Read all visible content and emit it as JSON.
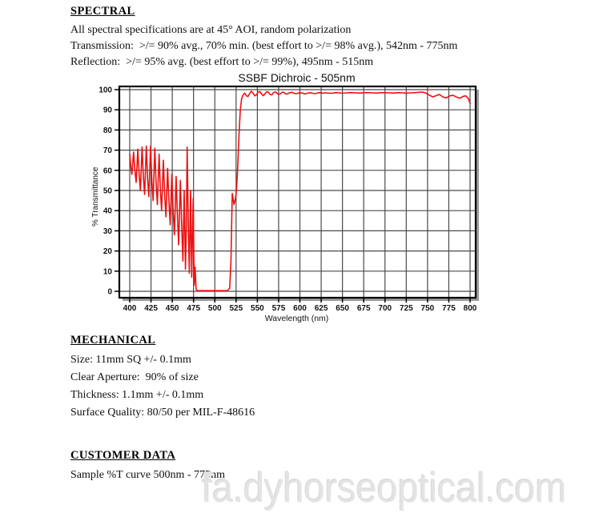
{
  "spectral": {
    "heading": "SPECTRAL",
    "lines": [
      "All spectral specifications are at 45° AOI, random polarization",
      "Transmission:  >/= 90% avg., 70% min. (best effort to >/= 98% avg.), 542nm - 775nm",
      "Reflection:  >/= 95% avg. (best effort to >/= 99%), 495nm - 515nm"
    ]
  },
  "chart_data": {
    "type": "line",
    "title": "SSBF Dichroic - 505nm",
    "xlabel": "Wavelength (nm)",
    "ylabel": "% Transmittance",
    "xlim": [
      400,
      800
    ],
    "ylim": [
      0,
      100
    ],
    "grid": true,
    "x_ticks": [
      400,
      425,
      450,
      475,
      500,
      525,
      550,
      575,
      600,
      625,
      650,
      675,
      700,
      725,
      750,
      775,
      800
    ],
    "y_ticks": [
      0,
      10,
      20,
      30,
      40,
      50,
      60,
      70,
      80,
      90,
      100
    ],
    "line_color": "#ee1010",
    "grid_color": "#4a4a4a",
    "frame_color": "#000000",
    "shadow_color": "#9b9b9b",
    "series": [
      {
        "name": "%T",
        "points": [
          [
            400,
            68
          ],
          [
            401.5,
            61
          ],
          [
            402.5,
            58
          ],
          [
            404.5,
            69
          ],
          [
            406,
            60
          ],
          [
            407.5,
            54
          ],
          [
            409.5,
            70.5
          ],
          [
            411,
            58
          ],
          [
            412.5,
            50
          ],
          [
            414.5,
            71.5
          ],
          [
            416,
            57
          ],
          [
            417.5,
            48
          ],
          [
            419.5,
            72
          ],
          [
            421,
            56
          ],
          [
            422.5,
            47
          ],
          [
            424.5,
            72
          ],
          [
            426,
            55
          ],
          [
            427.5,
            45
          ],
          [
            429.5,
            71
          ],
          [
            431,
            54
          ],
          [
            432.5,
            43
          ],
          [
            434.5,
            68
          ],
          [
            436,
            50
          ],
          [
            437.5,
            40
          ],
          [
            439.5,
            65
          ],
          [
            441,
            48
          ],
          [
            442.5,
            37
          ],
          [
            444.5,
            61
          ],
          [
            446,
            45
          ],
          [
            447.5,
            33
          ],
          [
            449.5,
            58
          ],
          [
            451,
            40
          ],
          [
            452.5,
            28
          ],
          [
            454.5,
            57
          ],
          [
            456,
            38
          ],
          [
            457.5,
            23
          ],
          [
            459.5,
            55
          ],
          [
            461,
            34
          ],
          [
            462.5,
            15
          ],
          [
            464,
            50
          ],
          [
            465.5,
            11
          ],
          [
            466.5,
            32
          ],
          [
            467.5,
            71.5
          ],
          [
            469,
            30
          ],
          [
            470,
            9
          ],
          [
            471.5,
            50
          ],
          [
            472.8,
            7
          ],
          [
            474.5,
            46
          ],
          [
            475.8,
            3
          ],
          [
            476.8,
            12
          ],
          [
            478,
            1
          ],
          [
            479.5,
            0.4
          ],
          [
            482,
            0.3
          ],
          [
            486,
            0.3
          ],
          [
            490,
            0.3
          ],
          [
            495,
            0.3
          ],
          [
            500,
            0.3
          ],
          [
            505,
            0.3
          ],
          [
            510,
            0.3
          ],
          [
            515,
            0.4
          ],
          [
            517.5,
            1.5
          ],
          [
            519,
            15
          ],
          [
            520.5,
            48.5
          ],
          [
            522.5,
            43
          ],
          [
            524,
            45.5
          ],
          [
            525.5,
            50
          ],
          [
            527,
            62
          ],
          [
            528.5,
            78
          ],
          [
            530,
            90
          ],
          [
            531.5,
            95.5
          ],
          [
            533,
            97.2
          ],
          [
            535,
            98.3
          ],
          [
            537,
            97
          ],
          [
            539,
            96.6
          ],
          [
            541,
            98.1
          ],
          [
            543,
            99.2
          ],
          [
            545,
            98.3
          ],
          [
            547,
            96.9
          ],
          [
            549,
            97.4
          ],
          [
            551,
            98.9
          ],
          [
            553,
            99
          ],
          [
            555,
            97.8
          ],
          [
            557,
            97
          ],
          [
            559,
            97.9
          ],
          [
            561,
            99
          ],
          [
            563,
            98.7
          ],
          [
            565,
            97.6
          ],
          [
            567,
            97.4
          ],
          [
            569,
            98.5
          ],
          [
            571,
            98.9
          ],
          [
            573,
            98.3
          ],
          [
            575,
            97.6
          ],
          [
            577,
            97.9
          ],
          [
            579,
            98.7
          ],
          [
            581,
            98.7
          ],
          [
            583,
            97.9
          ],
          [
            585,
            97.8
          ],
          [
            588,
            98.5
          ],
          [
            591,
            98.7
          ],
          [
            594,
            98
          ],
          [
            597,
            98.1
          ],
          [
            600,
            98.5
          ],
          [
            603,
            98.3
          ],
          [
            606,
            97.9
          ],
          [
            609,
            98.2
          ],
          [
            612,
            98.5
          ],
          [
            615,
            98.2
          ],
          [
            618,
            98
          ],
          [
            621,
            98.4
          ],
          [
            624,
            98.5
          ],
          [
            627,
            98.2
          ],
          [
            630,
            98.4
          ],
          [
            634,
            98.3
          ],
          [
            638,
            98.2
          ],
          [
            642,
            98.5
          ],
          [
            646,
            98.4
          ],
          [
            650,
            98.2
          ],
          [
            655,
            98.4
          ],
          [
            660,
            98.5
          ],
          [
            665,
            98.4
          ],
          [
            670,
            98.3
          ],
          [
            675,
            98.5
          ],
          [
            680,
            98.5
          ],
          [
            685,
            98.4
          ],
          [
            690,
            98.3
          ],
          [
            695,
            98.5
          ],
          [
            700,
            98.5
          ],
          [
            705,
            98.4
          ],
          [
            710,
            98.3
          ],
          [
            715,
            98.5
          ],
          [
            720,
            98.4
          ],
          [
            725,
            98.3
          ],
          [
            730,
            98.4
          ],
          [
            735,
            98.5
          ],
          [
            740,
            98.7
          ],
          [
            744,
            98.8
          ],
          [
            748,
            98.3
          ],
          [
            752,
            97.3
          ],
          [
            756,
            96.4
          ],
          [
            760,
            97
          ],
          [
            764,
            97.6
          ],
          [
            768,
            96.4
          ],
          [
            772,
            95.9
          ],
          [
            776,
            96.9
          ],
          [
            780,
            97.2
          ],
          [
            784,
            96.3
          ],
          [
            788,
            95.7
          ],
          [
            792,
            96.7
          ],
          [
            795,
            96.9
          ],
          [
            798,
            95.6
          ],
          [
            800,
            93.2
          ]
        ]
      }
    ]
  },
  "mechanical": {
    "heading": "MECHANICAL",
    "lines": [
      "Size: 11mm SQ +/- 0.1mm",
      "Clear Aperture:  90% of size",
      "Thickness: 1.1mm +/- 0.1mm",
      "Surface Quality: 80/50 per MIL-F-48616"
    ]
  },
  "customer": {
    "heading": "CUSTOMER DATA",
    "lines": [
      "Sample %T curve 500nm - 775nm"
    ]
  },
  "watermark": {
    "text": "fa.dyhorseoptical.com",
    "color": "#e3e3e3"
  }
}
